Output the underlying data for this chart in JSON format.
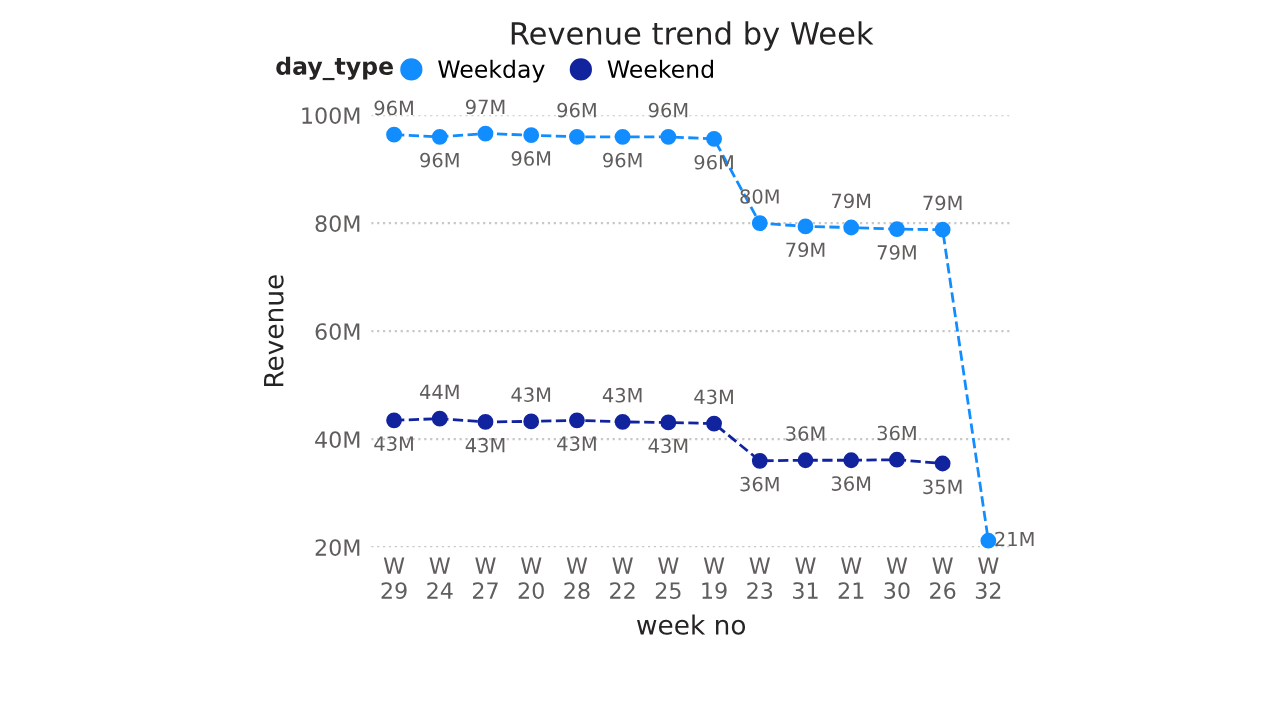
{
  "chart_data": {
    "type": "line",
    "title": "Revenue trend by Week",
    "xlabel": "week no",
    "ylabel": "Revenue",
    "legend_title": "day_type",
    "categories": [
      "W 29",
      "W 24",
      "W 27",
      "W 20",
      "W 28",
      "W 22",
      "W 25",
      "W 19",
      "W 23",
      "W 31",
      "W 21",
      "W 30",
      "W 26",
      "W 32"
    ],
    "series": [
      {
        "name": "Weekday",
        "color": "#118dff",
        "values": [
          96.4,
          96,
          96.6,
          96.3,
          96,
          96,
          96,
          95.6,
          80,
          79.4,
          79.2,
          78.9,
          78.8,
          21.2
        ],
        "value_labels": [
          "96M",
          "96M",
          "97M",
          "96M",
          "96M",
          "96M",
          "96M",
          "96M",
          "80M",
          "79M",
          "79M",
          "79M",
          "79M",
          "21M"
        ]
      },
      {
        "name": "Weekend",
        "color": "#12239e",
        "values": [
          43.5,
          43.8,
          43.2,
          43.3,
          43.5,
          43.2,
          43.1,
          42.9,
          36,
          36.1,
          36.1,
          36.2,
          35.5,
          null
        ],
        "value_labels": [
          "43M",
          "44M",
          "43M",
          "43M",
          "43M",
          "43M",
          "43M",
          "43M",
          "36M",
          "36M",
          "36M",
          "36M",
          "35M",
          null
        ]
      }
    ],
    "ylim": [
      20,
      100
    ],
    "yticks": [
      {
        "value": 20,
        "label": "20M"
      },
      {
        "value": 40,
        "label": "40M"
      },
      {
        "value": 60,
        "label": "60M"
      },
      {
        "value": 80,
        "label": "80M"
      },
      {
        "value": 100,
        "label": "100M"
      }
    ],
    "grid": "y",
    "legend": "top left",
    "marker": "circle",
    "line_style": "dashed"
  }
}
